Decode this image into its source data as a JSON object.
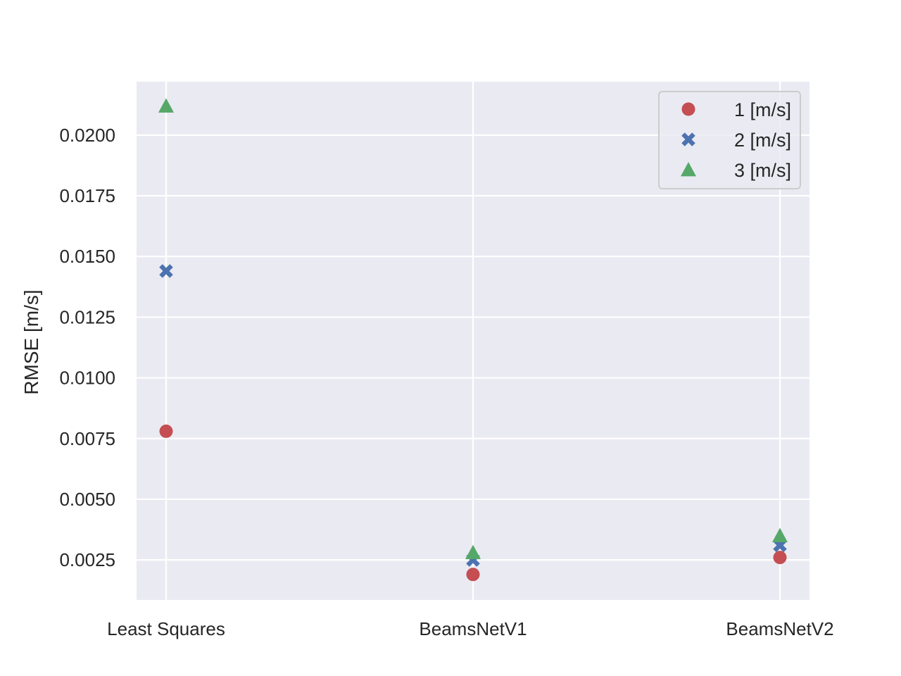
{
  "chart_data": {
    "type": "scatter",
    "categories": [
      "Least Squares",
      "BeamsNetV1",
      "BeamsNetV2"
    ],
    "ylabel": "RMSE [m/s]",
    "xlabel": "",
    "ylim": [
      0.00085,
      0.0222
    ],
    "yticks": [
      "0.0025",
      "0.0050",
      "0.0075",
      "0.0100",
      "0.0125",
      "0.0150",
      "0.0175",
      "0.0200"
    ],
    "grid": true,
    "legend_position": "top-right",
    "series": [
      {
        "name": "1 [m/s]",
        "marker": "circle",
        "color": "#c44e52",
        "values": [
          0.0078,
          0.0019,
          0.0026
        ]
      },
      {
        "name": "2 [m/s]",
        "marker": "x",
        "color": "#4c72b0",
        "values": [
          0.0144,
          0.0025,
          0.0031
        ]
      },
      {
        "name": "3 [m/s]",
        "marker": "triangle",
        "color": "#55a868",
        "values": [
          0.0212,
          0.0028,
          0.0035
        ]
      }
    ],
    "background_color": "#eaeaf2",
    "grid_color": "#ffffff"
  }
}
